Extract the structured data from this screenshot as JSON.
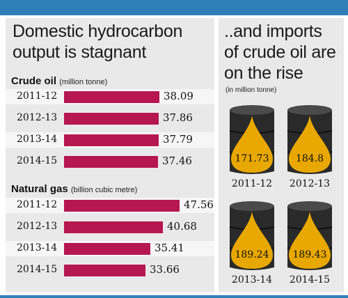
{
  "left": {
    "headline_line1": "Domestic hydrocarbon",
    "headline_line2": "output is stagnant",
    "crude": {
      "title": "Crude oil",
      "unit": "(million tonne)"
    },
    "gas": {
      "title": "Natural gas",
      "unit": "(billion cubic metre)"
    }
  },
  "right": {
    "headline_line1": "..and imports",
    "headline_line2": "of crude oil are",
    "headline_line3": "on the rise",
    "unit": "(in million tonne)"
  },
  "colors": {
    "bar": "#b5174e",
    "barrel": "#2a2a2a",
    "drop": "#e8a800",
    "accent": "#2f7fb9"
  },
  "chart_data": [
    {
      "type": "bar",
      "title": "Crude oil",
      "subtitle": "(million tonne)",
      "categories": [
        "2011-12",
        "2012-13",
        "2013-14",
        "2014-15"
      ],
      "values": [
        38.09,
        37.86,
        37.79,
        37.46
      ]
    },
    {
      "type": "bar",
      "title": "Natural gas",
      "subtitle": "(billion cubic metre)",
      "categories": [
        "2011-12",
        "2012-13",
        "2013-14",
        "2014-15"
      ],
      "values": [
        47.56,
        40.68,
        35.41,
        33.66
      ]
    },
    {
      "type": "bar",
      "title": "..and imports of crude oil are on the rise",
      "subtitle": "(in million tonne)",
      "categories": [
        "2011-12",
        "2012-13",
        "2013-14",
        "2014-15"
      ],
      "values": [
        171.73,
        184.8,
        189.24,
        189.43
      ]
    }
  ]
}
